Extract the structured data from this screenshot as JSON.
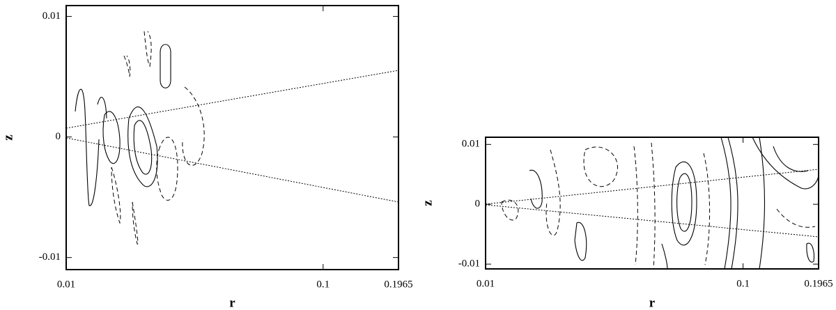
{
  "chart_data": [
    {
      "type": "contour",
      "xlabel": "r",
      "ylabel": "z",
      "xscale": "log",
      "xlim": [
        0.01,
        0.1965
      ],
      "xticks": [
        0.01,
        0.1,
        0.1965
      ],
      "ylim": [
        -0.011,
        0.0109
      ],
      "yticks": [
        -0.01,
        0,
        0.01
      ]
    },
    {
      "type": "contour",
      "xlabel": "r",
      "ylabel": "z",
      "xscale": "log",
      "xlim": [
        0.01,
        0.1965
      ],
      "xticks": [
        0.01,
        0.1,
        0.1965
      ],
      "ylim": [
        -0.0108,
        0.0112
      ],
      "yticks": [
        -0.01,
        0,
        0.01
      ]
    }
  ]
}
